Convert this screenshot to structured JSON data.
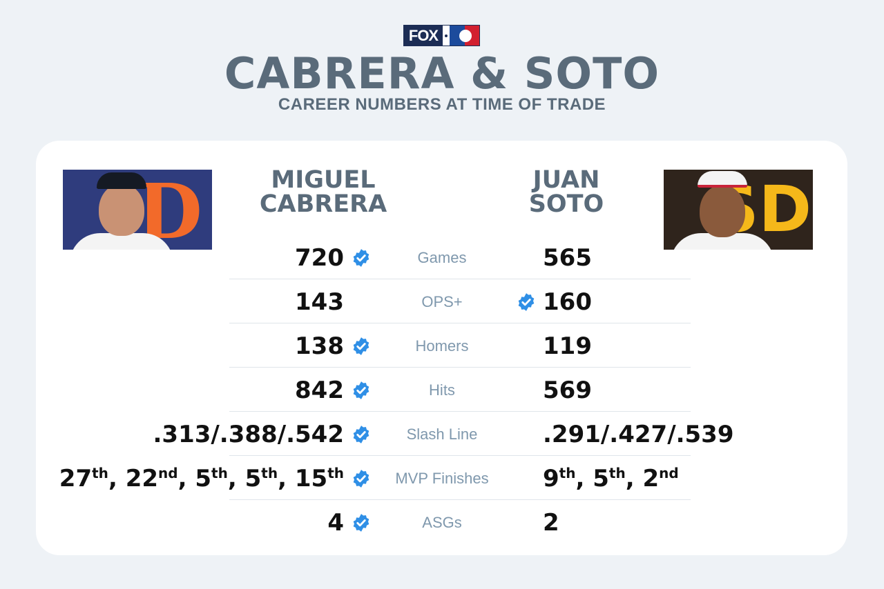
{
  "logo": {
    "fox": "FOX"
  },
  "header": {
    "title": "CABRERA & SOTO",
    "subtitle": "CAREER NUMBERS AT TIME OF TRADE"
  },
  "players": {
    "left": {
      "first": "MIGUEL",
      "last": "CABRERA"
    },
    "right": {
      "first": "JUAN",
      "last": "SOTO"
    }
  },
  "rows": [
    {
      "label": "Games",
      "left": "720",
      "right": "565",
      "winner": "left"
    },
    {
      "label": "OPS+",
      "left": "143",
      "right": "160",
      "winner": "right"
    },
    {
      "label": "Homers",
      "left": "138",
      "right": "119",
      "winner": "left"
    },
    {
      "label": "Hits",
      "left": "842",
      "right": "569",
      "winner": "left"
    },
    {
      "label": "Slash Line",
      "left": ".313/.388/.542",
      "right": ".291/.427/.539",
      "winner": "left"
    },
    {
      "label": "MVP Finishes",
      "left": "27th, 22nd, 5th, 5th, 15th",
      "right": "9th, 5th, 2nd",
      "winner": "left"
    },
    {
      "label": "ASGs",
      "left": "4",
      "right": "2",
      "winner": "left"
    }
  ],
  "mvp": {
    "left": [
      {
        "n": "27",
        "s": "th"
      },
      {
        "n": "22",
        "s": "nd"
      },
      {
        "n": "5",
        "s": "th"
      },
      {
        "n": "5",
        "s": "th"
      },
      {
        "n": "15",
        "s": "th"
      }
    ],
    "right": [
      {
        "n": "9",
        "s": "th"
      },
      {
        "n": "5",
        "s": "th"
      },
      {
        "n": "2",
        "s": "nd"
      }
    ]
  },
  "colors": {
    "check": "#2f8fe6",
    "label": "#7f98ad",
    "title": "#5a6b7a"
  },
  "icons": {
    "check": "verified-check-icon"
  }
}
